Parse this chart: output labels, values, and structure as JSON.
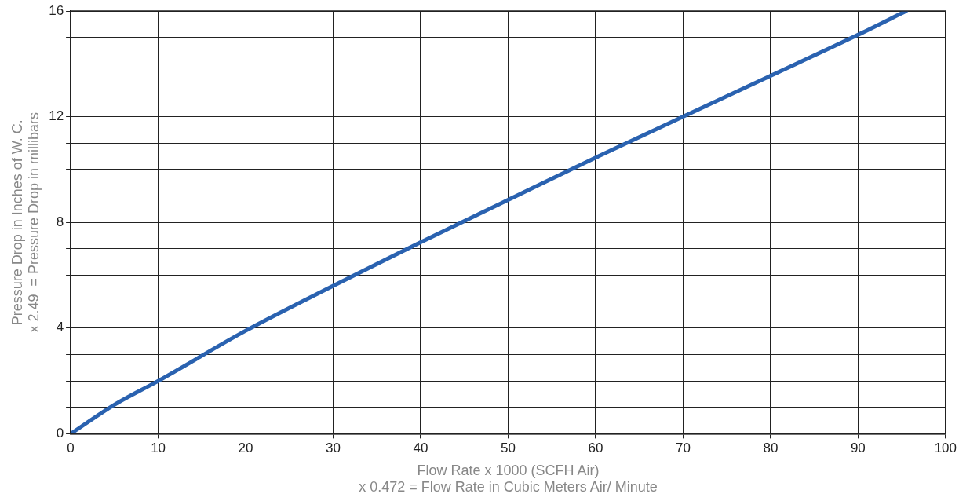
{
  "chart_data": {
    "type": "line",
    "xlabel": "Flow Rate x 1000 (SCFH Air)\nx 0.472 = Flow Rate in Cubic Meters Air/ Minute",
    "ylabel": "Pressure Drop in Inches of W. C.\nx 2.49  = Pressure Drop in millibars",
    "x": [
      0,
      5,
      10,
      20,
      30,
      40,
      50,
      60,
      70,
      80,
      90,
      95.5
    ],
    "series": [
      {
        "color": "#2a62b0",
        "values": [
          0,
          1.1,
          2.0,
          3.9,
          5.6,
          7.25,
          8.85,
          10.45,
          12.0,
          13.55,
          15.1,
          16
        ]
      }
    ],
    "xlim": [
      0,
      100
    ],
    "xticks": [
      0,
      10,
      20,
      30,
      40,
      50,
      60,
      70,
      80,
      90,
      100
    ],
    "ylim": [
      0,
      16
    ],
    "yticks": [
      0,
      {
        "value": 1,
        "label": null
      },
      {
        "value": 2,
        "label": null
      },
      {
        "value": 3,
        "label": null
      },
      4,
      {
        "value": 5,
        "label": null
      },
      {
        "value": 6,
        "label": null
      },
      {
        "value": 7,
        "label": null
      },
      8,
      {
        "value": 9,
        "label": null
      },
      {
        "value": 10,
        "label": null
      },
      {
        "value": 11,
        "label": null
      },
      12,
      {
        "value": 13,
        "label": null
      },
      {
        "value": 14,
        "label": null
      },
      {
        "value": 15,
        "label": null
      },
      16
    ],
    "grid": true,
    "legend": false,
    "marker": "none",
    "line_style": "solid"
  }
}
